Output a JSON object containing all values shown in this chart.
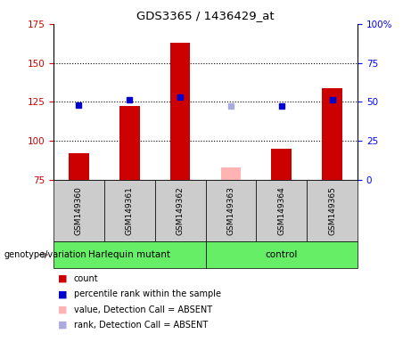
{
  "title": "GDS3365 / 1436429_at",
  "samples": [
    "GSM149360",
    "GSM149361",
    "GSM149362",
    "GSM149363",
    "GSM149364",
    "GSM149365"
  ],
  "red_bar_values": [
    92,
    122,
    163,
    null,
    95,
    134
  ],
  "pink_bar_values": [
    null,
    null,
    null,
    83,
    null,
    null
  ],
  "blue_square_pct": [
    48,
    51,
    53,
    null,
    47,
    51
  ],
  "lightblue_square_pct": [
    null,
    null,
    null,
    47,
    null,
    null
  ],
  "ylim_left": [
    75,
    175
  ],
  "ylim_right": [
    0,
    100
  ],
  "yticks_left": [
    75,
    100,
    125,
    150,
    175
  ],
  "yticks_right": [
    0,
    25,
    50,
    75,
    100
  ],
  "ytick_labels_right": [
    "0",
    "25",
    "50",
    "75",
    "100%"
  ],
  "hlines": [
    100,
    125,
    150
  ],
  "group1_label": "Harlequin mutant",
  "group2_label": "control",
  "group1_indices": [
    0,
    1,
    2
  ],
  "group2_indices": [
    3,
    4,
    5
  ],
  "genotype_label": "genotype/variation",
  "red_color": "#cc0000",
  "pink_color": "#ffb3b3",
  "blue_color": "#0000cc",
  "lightblue_color": "#aaaadd",
  "group_bg_color": "#66ee66",
  "sample_bg_color": "#cccccc",
  "bar_width": 0.4,
  "legend_items": [
    {
      "label": "count",
      "color": "#cc0000"
    },
    {
      "label": "percentile rank within the sample",
      "color": "#0000cc"
    },
    {
      "label": "value, Detection Call = ABSENT",
      "color": "#ffb3b3"
    },
    {
      "label": "rank, Detection Call = ABSENT",
      "color": "#aaaadd"
    }
  ]
}
